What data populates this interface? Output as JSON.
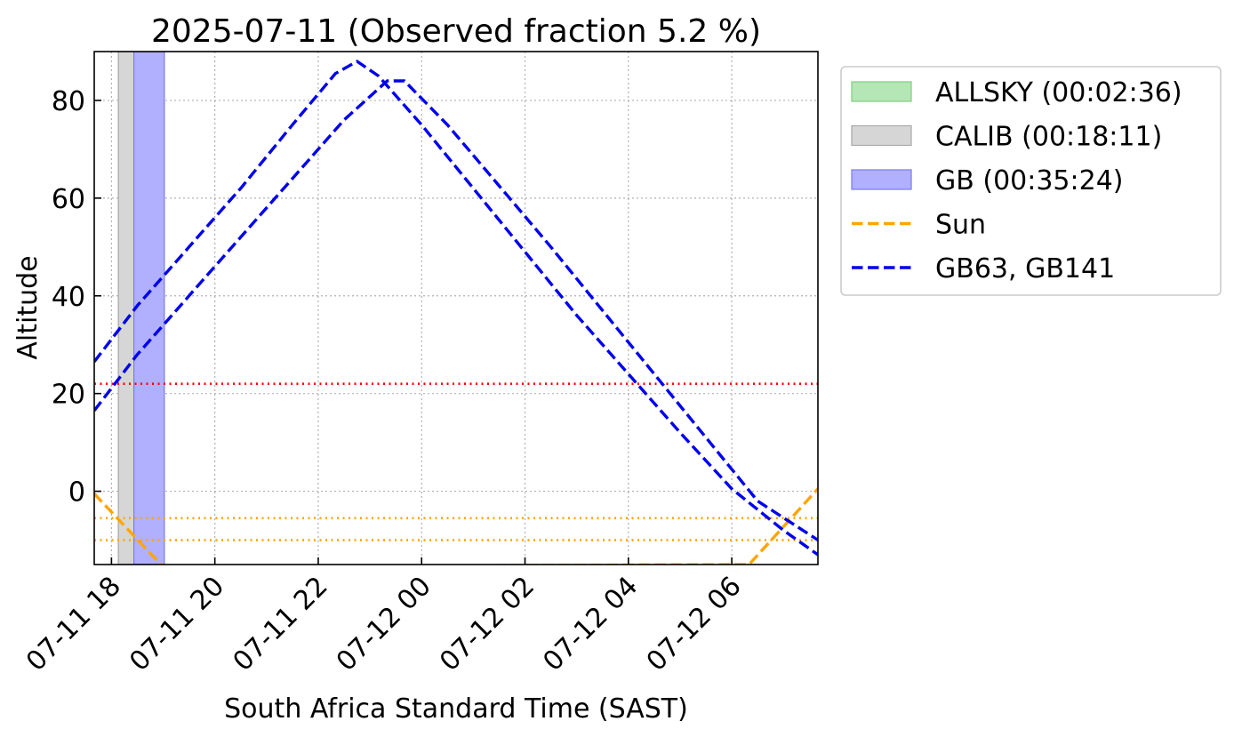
{
  "chart_data": {
    "type": "line",
    "title": "2025-07-11 (Observed fraction 5.2 %)",
    "xlabel": "South Africa Standard Time (SAST)",
    "ylabel": "Altitude",
    "xlim": [
      "2025-07-11 17:40",
      "2025-07-12 07:40"
    ],
    "ylim": [
      -15,
      90
    ],
    "grid": true,
    "legend_position": "outside right, top",
    "x_ticks": [
      {
        "t": "2025-07-11 18:00",
        "label": "07-11 18"
      },
      {
        "t": "2025-07-11 20:00",
        "label": "07-11 20"
      },
      {
        "t": "2025-07-11 22:00",
        "label": "07-11 22"
      },
      {
        "t": "2025-07-12 00:00",
        "label": "07-12 00"
      },
      {
        "t": "2025-07-12 02:00",
        "label": "07-12 02"
      },
      {
        "t": "2025-07-12 04:00",
        "label": "07-12 04"
      },
      {
        "t": "2025-07-12 06:00",
        "label": "07-12 06"
      }
    ],
    "y_ticks": [
      0,
      20,
      40,
      60,
      80
    ],
    "spans": [
      {
        "name": "ALLSKY",
        "duration": "00:02:36",
        "color": "#b5e6b5",
        "edge": "#7fcf7f",
        "start": "2025-07-11 18:08",
        "end": "2025-07-11 18:10:36"
      },
      {
        "name": "CALIB",
        "duration": "00:18:11",
        "color": "#d6d6d6",
        "edge": "#a8a8a8",
        "start": "2025-07-11 18:08",
        "end": "2025-07-11 18:26:11"
      },
      {
        "name": "GB",
        "duration": "00:35:24",
        "color": "#b0b0ff",
        "edge": "#7a7aee",
        "start": "2025-07-11 18:26",
        "end": "2025-07-11 19:01:24"
      }
    ],
    "hlines": [
      {
        "y": 22,
        "color": "#ff0000"
      },
      {
        "y": -5.5,
        "color": "#ffa500"
      },
      {
        "y": -10,
        "color": "#ffa500"
      }
    ],
    "series": [
      {
        "name": "Sun",
        "color": "#ffa500",
        "points": [
          {
            "t": "2025-07-11 17:40",
            "y": -0.5
          },
          {
            "t": "2025-07-11 19:00",
            "y": -15.5
          },
          {
            "t": "2025-07-12 06:20",
            "y": -15
          },
          {
            "t": "2025-07-12 07:40",
            "y": 0.5
          }
        ]
      },
      {
        "name": "GB63",
        "color": "#0000ee",
        "points": [
          {
            "t": "2025-07-11 17:40",
            "y": 26.5
          },
          {
            "t": "2025-07-11 18:30",
            "y": 38
          },
          {
            "t": "2025-07-11 19:30",
            "y": 50
          },
          {
            "t": "2025-07-11 20:30",
            "y": 62
          },
          {
            "t": "2025-07-11 21:30",
            "y": 75
          },
          {
            "t": "2025-07-11 22:20",
            "y": 85.5
          },
          {
            "t": "2025-07-11 22:45",
            "y": 88
          },
          {
            "t": "2025-07-11 23:10",
            "y": 85
          },
          {
            "t": "2025-07-12 00:00",
            "y": 75
          },
          {
            "t": "2025-07-12 01:00",
            "y": 62
          },
          {
            "t": "2025-07-12 02:00",
            "y": 49
          },
          {
            "t": "2025-07-12 03:00",
            "y": 36
          },
          {
            "t": "2025-07-12 04:00",
            "y": 24
          },
          {
            "t": "2025-07-12 05:00",
            "y": 12
          },
          {
            "t": "2025-07-12 06:00",
            "y": 0.5
          },
          {
            "t": "2025-07-12 07:00",
            "y": -8
          },
          {
            "t": "2025-07-12 07:40",
            "y": -13
          }
        ]
      },
      {
        "name": "GB141",
        "color": "#0000ee",
        "points": [
          {
            "t": "2025-07-11 17:40",
            "y": 16.5
          },
          {
            "t": "2025-07-11 18:30",
            "y": 28
          },
          {
            "t": "2025-07-11 19:30",
            "y": 40
          },
          {
            "t": "2025-07-11 20:30",
            "y": 52
          },
          {
            "t": "2025-07-11 21:30",
            "y": 64
          },
          {
            "t": "2025-07-11 22:30",
            "y": 76
          },
          {
            "t": "2025-07-11 23:20",
            "y": 84
          },
          {
            "t": "2025-07-11 23:40",
            "y": 84
          },
          {
            "t": "2025-07-12 00:30",
            "y": 75
          },
          {
            "t": "2025-07-12 01:30",
            "y": 62.5
          },
          {
            "t": "2025-07-12 02:30",
            "y": 50
          },
          {
            "t": "2025-07-12 03:30",
            "y": 37
          },
          {
            "t": "2025-07-12 04:30",
            "y": 24
          },
          {
            "t": "2025-07-12 05:30",
            "y": 11
          },
          {
            "t": "2025-07-12 06:30",
            "y": -2
          },
          {
            "t": "2025-07-12 07:40",
            "y": -10
          }
        ]
      }
    ],
    "legend": [
      {
        "label": "ALLSKY (00:02:36)",
        "kind": "patch",
        "color": "#b5e6b5",
        "edge": "#7fcf7f"
      },
      {
        "label": "CALIB (00:18:11)",
        "kind": "patch",
        "color": "#d6d6d6",
        "edge": "#a8a8a8"
      },
      {
        "label": "GB (00:35:24)",
        "kind": "patch",
        "color": "#b0b0ff",
        "edge": "#7a7aee"
      },
      {
        "label": "Sun",
        "kind": "dash",
        "color": "#ffa500"
      },
      {
        "label": "GB63, GB141",
        "kind": "dash",
        "color": "#0000ee"
      }
    ]
  }
}
